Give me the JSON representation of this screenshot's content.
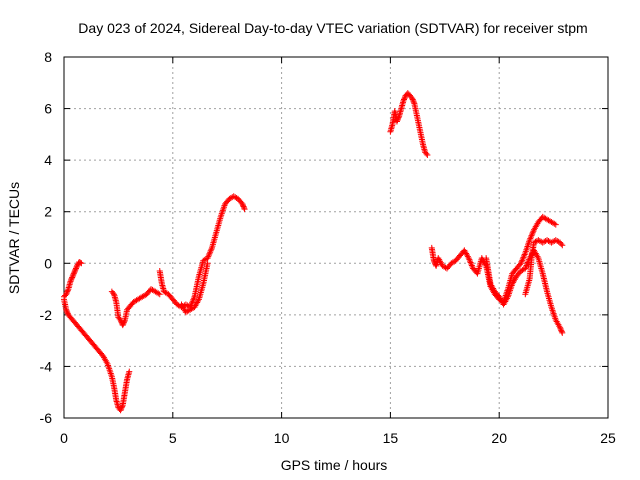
{
  "chart_data": {
    "type": "scatter",
    "title": "Day 023 of 2024, Sidereal Day-to-day VTEC variation (SDTVAR) for receiver stpm",
    "xlabel": "GPS time / hours",
    "ylabel": "SDTVAR / TECUs",
    "xlim": [
      0,
      25
    ],
    "ylim": [
      -6,
      8
    ],
    "xticks": [
      0,
      5,
      10,
      15,
      20,
      25
    ],
    "yticks": [
      -6,
      -4,
      -2,
      0,
      2,
      4,
      6,
      8
    ],
    "grid": true,
    "marker": "+",
    "series_color": "#ff0000",
    "segments": [
      {
        "x": [
          0.0,
          0.1,
          0.2,
          0.3,
          0.4,
          0.5,
          0.6,
          0.7,
          0.8
        ],
        "y": [
          -1.3,
          -1.2,
          -1.0,
          -0.7,
          -0.5,
          -0.3,
          -0.1,
          0.05,
          0.0
        ]
      },
      {
        "x": [
          0.0,
          0.1,
          0.2,
          0.4,
          0.6,
          0.8,
          1.0,
          1.2,
          1.4,
          1.6,
          1.8,
          2.0,
          2.2,
          2.3,
          2.4,
          2.5,
          2.6,
          2.7,
          2.8,
          2.9,
          3.0
        ],
        "y": [
          -1.4,
          -1.8,
          -2.0,
          -2.2,
          -2.4,
          -2.6,
          -2.8,
          -3.0,
          -3.2,
          -3.4,
          -3.6,
          -3.9,
          -4.4,
          -4.8,
          -5.3,
          -5.6,
          -5.7,
          -5.5,
          -5.0,
          -4.5,
          -4.2
        ]
      },
      {
        "x": [
          2.2,
          2.3,
          2.4,
          2.5,
          2.6,
          2.7,
          2.8,
          2.9,
          3.0,
          3.2,
          3.4,
          3.6,
          3.8,
          4.0,
          4.2,
          4.4
        ],
        "y": [
          -1.1,
          -1.2,
          -1.5,
          -2.1,
          -2.2,
          -2.4,
          -2.2,
          -1.8,
          -1.7,
          -1.5,
          -1.4,
          -1.3,
          -1.2,
          -1.0,
          -1.1,
          -1.2
        ]
      },
      {
        "x": [
          4.4,
          4.5,
          4.6,
          4.8,
          5.0,
          5.2,
          5.4,
          5.6,
          5.8,
          6.0,
          6.2,
          6.4,
          6.6,
          6.8,
          7.0,
          7.2,
          7.4,
          7.6,
          7.8,
          8.0,
          8.2,
          8.3
        ],
        "y": [
          -0.3,
          -0.8,
          -1.1,
          -1.2,
          -1.4,
          -1.6,
          -1.7,
          -1.6,
          -1.7,
          -1.3,
          -0.5,
          0.1,
          0.2,
          0.6,
          1.2,
          1.8,
          2.3,
          2.5,
          2.6,
          2.5,
          2.3,
          2.1
        ]
      },
      {
        "x": [
          5.4,
          5.6,
          5.8,
          6.0,
          6.2,
          6.4,
          6.6
        ],
        "y": [
          -1.6,
          -1.9,
          -1.8,
          -1.7,
          -1.4,
          -0.8,
          0.0
        ]
      },
      {
        "x": [
          15.0,
          15.1,
          15.2,
          15.3,
          15.4,
          15.5,
          15.6,
          15.7,
          15.8,
          15.9,
          16.0,
          16.1,
          16.2,
          16.3,
          16.4,
          16.5,
          16.6,
          16.7
        ],
        "y": [
          5.1,
          5.4,
          5.9,
          5.5,
          5.7,
          6.0,
          6.3,
          6.5,
          6.6,
          6.5,
          6.4,
          6.2,
          5.8,
          5.4,
          5.0,
          4.6,
          4.3,
          4.2
        ]
      },
      {
        "x": [
          16.9,
          17.0,
          17.1,
          17.2,
          17.4,
          17.6,
          17.8,
          18.0,
          18.2,
          18.4,
          18.6,
          18.8,
          19.0,
          19.2,
          19.4,
          19.6,
          19.8,
          20.0,
          20.2,
          20.4,
          20.6,
          20.8,
          21.0,
          21.2,
          21.4,
          21.6,
          21.8,
          22.0,
          22.2,
          22.4,
          22.6
        ],
        "y": [
          0.6,
          0.1,
          -0.1,
          0.2,
          -0.1,
          -0.2,
          0.0,
          0.1,
          0.3,
          0.5,
          0.2,
          -0.2,
          -0.4,
          0.2,
          -0.1,
          -0.9,
          -1.2,
          -1.4,
          -1.5,
          -1.0,
          -0.4,
          -0.2,
          0.0,
          0.4,
          0.9,
          1.3,
          1.6,
          1.8,
          1.7,
          1.6,
          1.5
        ]
      },
      {
        "x": [
          19.4,
          19.5,
          19.6,
          19.8,
          20.0,
          20.2,
          20.4,
          20.6,
          20.8,
          21.0,
          21.2,
          21.4,
          21.6,
          21.8,
          22.0,
          22.2,
          22.4,
          22.6,
          22.8,
          22.9
        ],
        "y": [
          0.2,
          -0.3,
          -0.8,
          -1.1,
          -1.3,
          -1.6,
          -1.3,
          -0.8,
          -0.5,
          -0.3,
          -0.2,
          0.2,
          0.5,
          0.2,
          -0.4,
          -1.1,
          -1.7,
          -2.2,
          -2.5,
          -2.7
        ]
      },
      {
        "x": [
          21.2,
          21.4,
          21.5,
          21.6,
          21.8,
          22.0,
          22.2,
          22.4,
          22.6,
          22.8,
          22.9
        ],
        "y": [
          -1.2,
          -0.6,
          0.3,
          0.8,
          0.9,
          0.8,
          0.9,
          0.8,
          0.9,
          0.8,
          0.7
        ]
      }
    ]
  }
}
